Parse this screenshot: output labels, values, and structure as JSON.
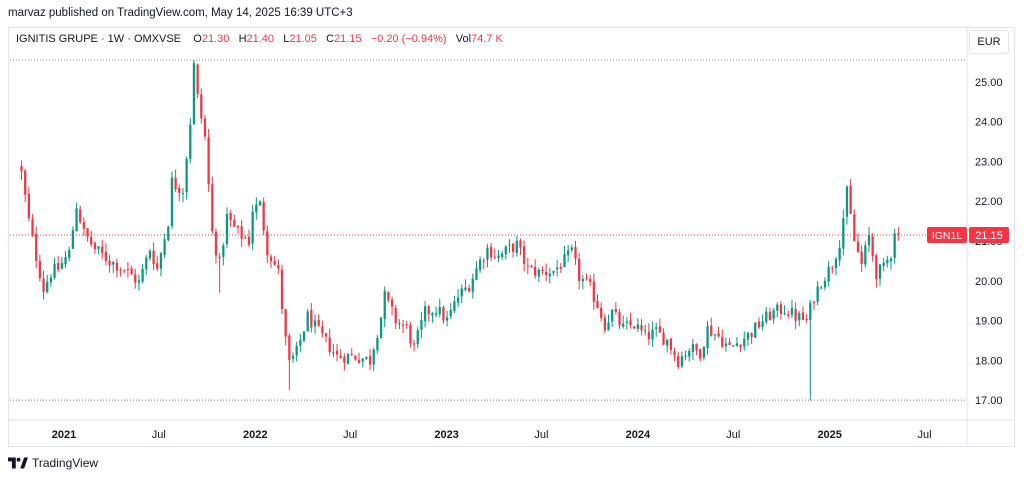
{
  "publish_line": "marvaz published on TradingView.com, May 14, 2025 16:39 UTC+3",
  "legend": {
    "symbol": "IGNITIS GRUPE · 1W · OMXVSE",
    "o_label": "O",
    "o_value": "21.30",
    "h_label": "H",
    "h_value": "21.40",
    "l_label": "L",
    "l_value": "21.05",
    "c_label": "C",
    "c_value": "21.15",
    "change": "−0.20 (−0.94%)",
    "vol_label": "Vol",
    "vol_value": "74.7 K"
  },
  "currency_button": "EUR",
  "price_tag": {
    "ticker": "IGN1L",
    "price": "21.15"
  },
  "footer": {
    "brand": "TradingView",
    "logo_icon": "tradingview-logo-icon"
  },
  "colors": {
    "up": "#089981",
    "down": "#f23645",
    "grid": "#e0e3eb",
    "text": "#131722"
  },
  "chart_data": {
    "type": "candlestick",
    "title": "IGNITIS GRUPE · 1W · OMXVSE",
    "y_ticks": [
      "17.00",
      "18.00",
      "19.00",
      "20.00",
      "21.00",
      "22.00",
      "23.00",
      "24.00",
      "25.00"
    ],
    "ylim": [
      16.6,
      25.6
    ],
    "x_ticks": [
      {
        "label": "2021",
        "date": "2021-01-01"
      },
      {
        "label": "Jul",
        "date": "2021-07-01"
      },
      {
        "label": "2022",
        "date": "2022-01-01"
      },
      {
        "label": "Jul",
        "date": "2022-07-01"
      },
      {
        "label": "2023",
        "date": "2023-01-01"
      },
      {
        "label": "Jul",
        "date": "2023-07-01"
      },
      {
        "label": "2024",
        "date": "2024-01-01"
      },
      {
        "label": "Jul",
        "date": "2024-07-01"
      },
      {
        "label": "2025",
        "date": "2025-01-01"
      },
      {
        "label": "Jul",
        "date": "2025-07-01"
      }
    ],
    "xlim": [
      "2020-09-20",
      "2025-09-20"
    ],
    "reference_lines": {
      "all_time_high": 25.55,
      "all_time_low": 17.0,
      "last_price": 21.15
    },
    "anchors": [
      [
        "2020-10-12",
        22.7
      ],
      [
        "2020-10-26",
        21.5
      ],
      [
        "2020-11-09",
        20.6
      ],
      [
        "2020-11-23",
        19.8
      ],
      [
        "2020-12-07",
        20.2
      ],
      [
        "2020-12-21",
        20.3
      ],
      [
        "2021-01-11",
        20.7
      ],
      [
        "2021-01-25",
        21.9
      ],
      [
        "2021-02-08",
        21.2
      ],
      [
        "2021-03-01",
        20.8
      ],
      [
        "2021-03-29",
        20.5
      ],
      [
        "2021-04-26",
        20.3
      ],
      [
        "2021-05-24",
        19.95
      ],
      [
        "2021-06-14",
        20.8
      ],
      [
        "2021-06-28",
        20.3
      ],
      [
        "2021-07-19",
        21.5
      ],
      [
        "2021-07-26",
        22.5
      ],
      [
        "2021-08-02",
        22.4
      ],
      [
        "2021-08-16",
        22.3
      ],
      [
        "2021-08-30",
        24.0
      ],
      [
        "2021-09-06",
        25.4
      ],
      [
        "2021-09-13",
        24.6
      ],
      [
        "2021-09-27",
        23.6
      ],
      [
        "2021-10-11",
        21.2
      ],
      [
        "2021-10-25",
        20.4
      ],
      [
        "2021-11-08",
        21.6
      ],
      [
        "2021-11-29",
        21.2
      ],
      [
        "2021-12-20",
        21.0
      ],
      [
        "2021-12-27",
        21.8
      ],
      [
        "2022-01-10",
        21.9
      ],
      [
        "2022-01-24",
        20.8
      ],
      [
        "2022-02-14",
        20.2
      ],
      [
        "2022-02-28",
        18.5
      ],
      [
        "2022-03-07",
        17.9
      ],
      [
        "2022-03-21",
        18.2
      ],
      [
        "2022-04-11",
        19.1
      ],
      [
        "2022-05-02",
        18.7
      ],
      [
        "2022-06-06",
        18.1
      ],
      [
        "2022-07-11",
        18.1
      ],
      [
        "2022-08-08",
        18.0
      ],
      [
        "2022-08-29",
        19.1
      ],
      [
        "2022-09-05",
        19.6
      ],
      [
        "2022-09-26",
        19.0
      ],
      [
        "2022-10-17",
        18.8
      ],
      [
        "2022-10-31",
        18.3
      ],
      [
        "2022-11-21",
        19.2
      ],
      [
        "2022-12-12",
        19.3
      ],
      [
        "2023-01-02",
        19.0
      ],
      [
        "2023-01-23",
        19.6
      ],
      [
        "2023-02-13",
        19.9
      ],
      [
        "2023-03-06",
        20.5
      ],
      [
        "2023-03-20",
        20.8
      ],
      [
        "2023-04-10",
        20.6
      ],
      [
        "2023-05-01",
        20.8
      ],
      [
        "2023-05-15",
        20.9
      ],
      [
        "2023-06-05",
        20.3
      ],
      [
        "2023-06-26",
        20.2
      ],
      [
        "2023-07-24",
        20.25
      ],
      [
        "2023-08-14",
        20.5
      ],
      [
        "2023-08-28",
        20.7
      ],
      [
        "2023-09-11",
        20.1
      ],
      [
        "2023-10-02",
        19.8
      ],
      [
        "2023-10-16",
        19.4
      ],
      [
        "2023-10-30",
        18.9
      ],
      [
        "2023-11-13",
        19.2
      ],
      [
        "2023-12-04",
        18.8
      ],
      [
        "2023-12-25",
        18.9
      ],
      [
        "2024-01-15",
        18.6
      ],
      [
        "2024-02-05",
        18.7
      ],
      [
        "2024-02-26",
        18.5
      ],
      [
        "2024-03-18",
        18.0
      ],
      [
        "2024-04-08",
        18.3
      ],
      [
        "2024-04-29",
        18.2
      ],
      [
        "2024-05-13",
        18.8
      ],
      [
        "2024-06-03",
        18.6
      ],
      [
        "2024-06-24",
        18.3
      ],
      [
        "2024-07-15",
        18.5
      ],
      [
        "2024-08-05",
        18.7
      ],
      [
        "2024-08-26",
        19.0
      ],
      [
        "2024-09-16",
        19.2
      ],
      [
        "2024-10-07",
        19.3
      ],
      [
        "2024-10-28",
        19.1
      ],
      [
        "2024-11-18",
        19.0
      ],
      [
        "2024-12-02",
        19.6
      ],
      [
        "2024-12-16",
        20.0
      ],
      [
        "2025-01-06",
        20.4
      ],
      [
        "2025-01-20",
        21.0
      ],
      [
        "2025-02-03",
        22.2
      ],
      [
        "2025-02-17",
        21.0
      ],
      [
        "2025-03-03",
        20.4
      ],
      [
        "2025-03-17",
        21.1
      ],
      [
        "2025-03-31",
        20.2
      ],
      [
        "2025-04-14",
        20.3
      ],
      [
        "2025-04-28",
        20.7
      ],
      [
        "2025-05-05",
        21.3
      ],
      [
        "2025-05-12",
        21.15
      ]
    ]
  }
}
